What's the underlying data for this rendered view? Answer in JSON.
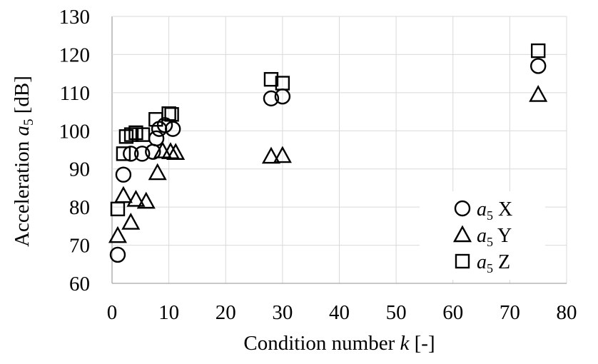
{
  "figure": {
    "background": "#ffffff",
    "description": "Scatter plot of acceleration level versus condition number"
  },
  "chart_data": {
    "type": "scatter",
    "title": "",
    "xlabel": {
      "prefix": "Condition number ",
      "var": "k",
      "suffix": " [-]"
    },
    "ylabel": {
      "prefix": "Acceleration ",
      "var": "a",
      "sub": "5",
      "suffix": " [dB]"
    },
    "xlim": [
      0,
      80
    ],
    "ylim": [
      60,
      130
    ],
    "xticks": [
      0,
      10,
      20,
      30,
      40,
      50,
      60,
      70,
      80
    ],
    "yticks": [
      60,
      70,
      80,
      90,
      100,
      110,
      120,
      130
    ],
    "grid": true,
    "legend_position": "inside-right",
    "colors": {
      "marker": "#000000",
      "grid": "#d9d9d9",
      "axis": "#a6a6a6",
      "text": "#000000",
      "background": "#ffffff"
    },
    "series": [
      {
        "name": "a5 X",
        "marker": "circle",
        "legend": {
          "var": "a",
          "sub": "5",
          "axis": "X"
        },
        "points": [
          [
            1,
            67.5
          ],
          [
            2,
            88.5
          ],
          [
            3.3,
            94
          ],
          [
            5.3,
            94
          ],
          [
            7.2,
            94.5
          ],
          [
            7.8,
            98
          ],
          [
            8.3,
            100.5
          ],
          [
            9.3,
            101.5
          ],
          [
            10.7,
            100.5
          ],
          [
            28,
            108.5
          ],
          [
            30,
            109
          ],
          [
            75,
            117
          ]
        ]
      },
      {
        "name": "a5 Y",
        "marker": "triangle",
        "legend": {
          "var": "a",
          "sub": "5",
          "axis": "Y"
        },
        "points": [
          [
            1,
            72.5
          ],
          [
            2,
            83
          ],
          [
            3.3,
            76
          ],
          [
            4.2,
            82
          ],
          [
            6,
            81.5
          ],
          [
            8,
            89
          ],
          [
            8.9,
            94.7
          ],
          [
            10.3,
            94.5
          ],
          [
            11.2,
            94.3
          ],
          [
            28,
            93.3
          ],
          [
            30,
            93.5
          ],
          [
            75,
            109.5
          ]
        ]
      },
      {
        "name": "a5 Z",
        "marker": "square",
        "legend": {
          "var": "a",
          "sub": "5",
          "axis": "Z"
        },
        "points": [
          [
            1,
            79.5
          ],
          [
            2,
            94
          ],
          [
            2.5,
            98.5
          ],
          [
            3.4,
            99
          ],
          [
            4.2,
            99.5
          ],
          [
            5.4,
            99
          ],
          [
            7.7,
            103
          ],
          [
            10,
            104.5
          ],
          [
            10.5,
            104.3
          ],
          [
            28,
            113.5
          ],
          [
            30,
            112.5
          ],
          [
            75,
            121
          ]
        ]
      }
    ]
  }
}
